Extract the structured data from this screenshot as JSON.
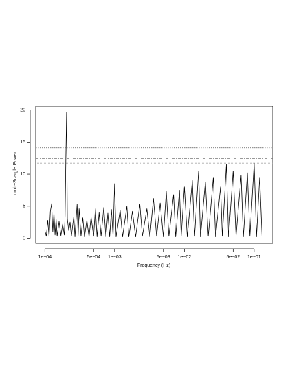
{
  "chart_data": {
    "type": "line",
    "x_label": "Frequency (Hz)",
    "y_label": "Lomb−Scargle Power",
    "x_log": true,
    "xlim": [
      7.4e-05,
      0.185
    ],
    "ylim": [
      -0.8,
      20.6
    ],
    "xticks": [
      {
        "value": 0.0001,
        "label": "1e−04"
      },
      {
        "value": 0.0005,
        "label": "5e−04"
      },
      {
        "value": 0.001,
        "label": "1e−03"
      },
      {
        "value": 0.005,
        "label": "5e−03"
      },
      {
        "value": 0.01,
        "label": "1e−02"
      },
      {
        "value": 0.05,
        "label": "5e−02"
      },
      {
        "value": 0.1,
        "label": "1e−01"
      }
    ],
    "yticks": [
      0,
      5,
      10,
      15,
      20
    ],
    "thresholds": [
      14.1,
      12.4,
      11.7
    ],
    "threshold_colors": [
      "#555555",
      "#777777",
      "#aaaaaa"
    ],
    "x": [
      0.0001,
      0.000105,
      0.00011,
      0.000115,
      0.00012,
      0.000125,
      0.00013,
      0.000135,
      0.00014,
      0.000145,
      0.00015,
      0.00016,
      0.00017,
      0.00018,
      0.00019,
      0.000195,
      0.0002,
      0.000205,
      0.00021,
      0.00022,
      0.00023,
      0.00024,
      0.00026,
      0.00027,
      0.00029,
      0.0003,
      0.00031,
      0.00033,
      0.00035,
      0.00037,
      0.0004,
      0.00043,
      0.00046,
      0.0005,
      0.00053,
      0.00056,
      0.0006,
      0.00064,
      0.0007,
      0.00075,
      0.0008,
      0.00085,
      0.0009,
      0.00095,
      0.001,
      0.00105,
      0.0012,
      0.0013,
      0.0015,
      0.0016,
      0.0018,
      0.002,
      0.0023,
      0.0025,
      0.0029,
      0.0032,
      0.0036,
      0.004,
      0.0045,
      0.005,
      0.0055,
      0.006,
      0.007,
      0.0075,
      0.0085,
      0.009,
      0.01,
      0.011,
      0.013,
      0.014,
      0.016,
      0.017,
      0.02,
      0.022,
      0.026,
      0.028,
      0.033,
      0.035,
      0.04,
      0.043,
      0.05,
      0.055,
      0.065,
      0.07,
      0.08,
      0.087,
      0.1,
      0.108,
      0.12,
      0.13
    ],
    "series": [
      {
        "color": "#000000",
        "values": [
          1.2,
          0.3,
          2.8,
          0.2,
          4.2,
          5.4,
          1.0,
          4.0,
          0.5,
          3.0,
          0.3,
          2.6,
          0.4,
          2.2,
          0.5,
          3.5,
          12.4,
          19.7,
          3.0,
          1.2,
          2.5,
          0.3,
          3.4,
          0.2,
          5.3,
          0.4,
          4.6,
          0.3,
          3.2,
          0.2,
          2.8,
          0.2,
          3.3,
          0.3,
          4.6,
          0.2,
          4.0,
          0.3,
          4.8,
          0.2,
          3.9,
          0.2,
          4.5,
          0.3,
          8.5,
          0.2,
          4.4,
          0.2,
          5.0,
          0.2,
          4.2,
          0.2,
          5.3,
          0.3,
          4.6,
          0.2,
          6.2,
          0.3,
          5.5,
          0.2,
          7.3,
          0.3,
          6.8,
          0.2,
          7.5,
          0.3,
          8.0,
          0.2,
          9.0,
          0.3,
          10.5,
          0.2,
          8.8,
          0.3,
          9.5,
          0.2,
          8.0,
          0.3,
          11.5,
          0.2,
          10.5,
          0.3,
          9.8,
          0.2,
          10.2,
          0.3,
          11.7,
          0.2,
          9.5,
          0.2
        ]
      }
    ]
  }
}
